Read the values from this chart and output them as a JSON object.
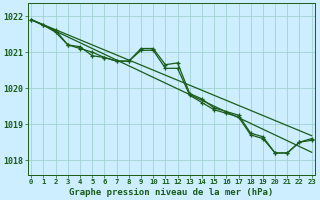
{
  "hours": [
    0,
    1,
    2,
    3,
    4,
    5,
    6,
    7,
    8,
    9,
    10,
    11,
    12,
    13,
    14,
    15,
    16,
    17,
    18,
    19,
    20,
    21,
    22,
    23
  ],
  "pressure_actual": [
    1021.9,
    1021.75,
    1021.6,
    1021.2,
    1021.15,
    1020.9,
    1020.85,
    1020.75,
    1020.75,
    1021.1,
    1021.1,
    1020.65,
    1020.7,
    1019.85,
    1019.7,
    1019.45,
    1019.35,
    1019.25,
    1018.75,
    1018.65,
    1018.2,
    1018.2,
    1018.5,
    1018.6
  ],
  "pressure_smooth": [
    1021.9,
    1021.75,
    1021.55,
    1021.2,
    1021.1,
    1021.0,
    1020.85,
    1020.75,
    1020.75,
    1021.05,
    1021.05,
    1020.55,
    1020.55,
    1019.8,
    1019.6,
    1019.4,
    1019.3,
    1019.2,
    1018.7,
    1018.6,
    1018.2,
    1018.2,
    1018.5,
    1018.55
  ],
  "trend1": [
    1021.9,
    1021.74,
    1021.58,
    1021.42,
    1021.26,
    1021.1,
    1020.94,
    1020.78,
    1020.62,
    1020.46,
    1020.3,
    1020.14,
    1019.98,
    1019.82,
    1019.66,
    1019.5,
    1019.34,
    1019.18,
    1019.02,
    1018.86,
    1018.7,
    1018.54,
    1018.38,
    1018.22
  ],
  "trend2": [
    1021.9,
    1021.76,
    1021.62,
    1021.48,
    1021.34,
    1021.2,
    1021.06,
    1020.92,
    1020.78,
    1020.64,
    1020.5,
    1020.36,
    1020.22,
    1020.08,
    1019.94,
    1019.8,
    1019.66,
    1019.52,
    1019.38,
    1019.24,
    1019.1,
    1018.96,
    1018.82,
    1018.68
  ],
  "bg_color": "#cceeff",
  "line_color": "#1a5c1a",
  "grid_color": "#99cccc",
  "xlabel": "Graphe pression niveau de la mer (hPa)",
  "ylim": [
    1017.6,
    1022.35
  ],
  "yticks": [
    1018,
    1019,
    1020,
    1021,
    1022
  ],
  "xlim": [
    -0.3,
    23.3
  ]
}
